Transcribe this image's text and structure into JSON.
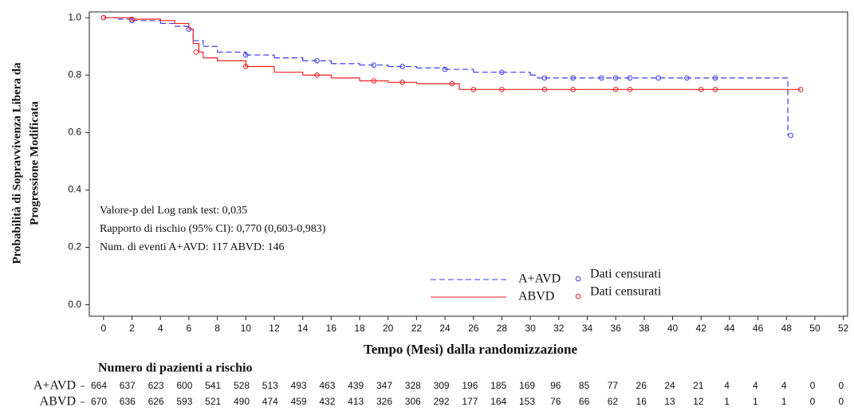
{
  "chart_data": {
    "type": "km",
    "ylabel": [
      "Probabilità di Sopravvivenza Libera da",
      "Progressione Modificata"
    ],
    "xlabel": "Tempo (Mesi) dalla randomizzazione",
    "xlim": [
      -1,
      52.3
    ],
    "ylim": [
      -0.04,
      1.02
    ],
    "xticks": [
      0,
      2,
      4,
      6,
      8,
      10,
      12,
      14,
      16,
      18,
      20,
      22,
      24,
      26,
      28,
      30,
      32,
      34,
      36,
      38,
      40,
      42,
      44,
      46,
      48,
      50,
      52
    ],
    "yticks": [
      {
        "value": 0,
        "label": "0.0"
      },
      0.2,
      0.4,
      0.6,
      0.8,
      {
        "value": 1,
        "label": "1.0"
      }
    ],
    "annotations": [
      "Valore-p del Log rank test: 0,035",
      "Rapporto di rischio (95% CI): 0,770 (0,603-0,983)",
      "Num. di eventi A+AVD: 117  ABVD: 146"
    ],
    "series": [
      {
        "name": "A+AVD",
        "color": "#3a3af0",
        "dash": true,
        "censor_name": "Dati censurati",
        "x": [
          0,
          1,
          2,
          4,
          5,
          6,
          6.3,
          7,
          8,
          10,
          12,
          14,
          16,
          18,
          20,
          22,
          24,
          26,
          28,
          30,
          30.5,
          31,
          36,
          44,
          48.1
        ],
        "y": [
          1,
          0.995,
          0.99,
          0.98,
          0.97,
          0.96,
          0.92,
          0.9,
          0.88,
          0.87,
          0.86,
          0.85,
          0.84,
          0.835,
          0.83,
          0.825,
          0.82,
          0.81,
          0.81,
          0.8,
          0.79,
          0.79,
          0.79,
          0.79,
          0.59
        ],
        "censor_x": [
          0,
          2,
          6,
          10,
          15,
          19,
          21,
          24,
          28,
          31,
          33,
          35,
          36,
          37,
          39,
          41,
          43,
          48.3
        ],
        "censor_y": [
          1,
          0.99,
          0.96,
          0.87,
          0.85,
          0.835,
          0.83,
          0.82,
          0.81,
          0.79,
          0.79,
          0.79,
          0.79,
          0.79,
          0.79,
          0.79,
          0.79,
          0.59
        ],
        "at_risk": [
          664,
          637,
          623,
          600,
          541,
          528,
          513,
          493,
          463,
          439,
          347,
          328,
          309,
          196,
          185,
          169,
          96,
          85,
          77,
          26,
          24,
          21,
          4,
          4,
          4,
          0,
          0
        ]
      },
      {
        "name": "ABVD",
        "color": "#f02020",
        "dash": false,
        "censor_name": "Dati censurati",
        "x": [
          0,
          2,
          4,
          5,
          6,
          6.3,
          6.7,
          7,
          8,
          10,
          12,
          14,
          16,
          18,
          20,
          22,
          24,
          25,
          30,
          49
        ],
        "y": [
          1,
          0.995,
          0.99,
          0.98,
          0.96,
          0.91,
          0.88,
          0.86,
          0.85,
          0.83,
          0.81,
          0.8,
          0.79,
          0.78,
          0.775,
          0.77,
          0.77,
          0.75,
          0.75,
          0.75
        ],
        "censor_x": [
          0,
          2,
          6.5,
          10,
          15,
          19,
          21,
          24.5,
          26,
          28,
          31,
          33,
          36,
          37,
          42,
          43,
          49
        ],
        "censor_y": [
          1,
          0.995,
          0.88,
          0.83,
          0.8,
          0.78,
          0.775,
          0.77,
          0.75,
          0.75,
          0.75,
          0.75,
          0.75,
          0.75,
          0.75,
          0.75,
          0.75
        ],
        "at_risk": [
          670,
          636,
          626,
          593,
          521,
          490,
          474,
          459,
          432,
          413,
          326,
          306,
          292,
          177,
          164,
          153,
          76,
          66,
          62,
          16,
          13,
          12,
          1,
          1,
          1,
          0,
          0
        ]
      }
    ],
    "risk_table_title": "Numero di pazienti a rischio"
  }
}
